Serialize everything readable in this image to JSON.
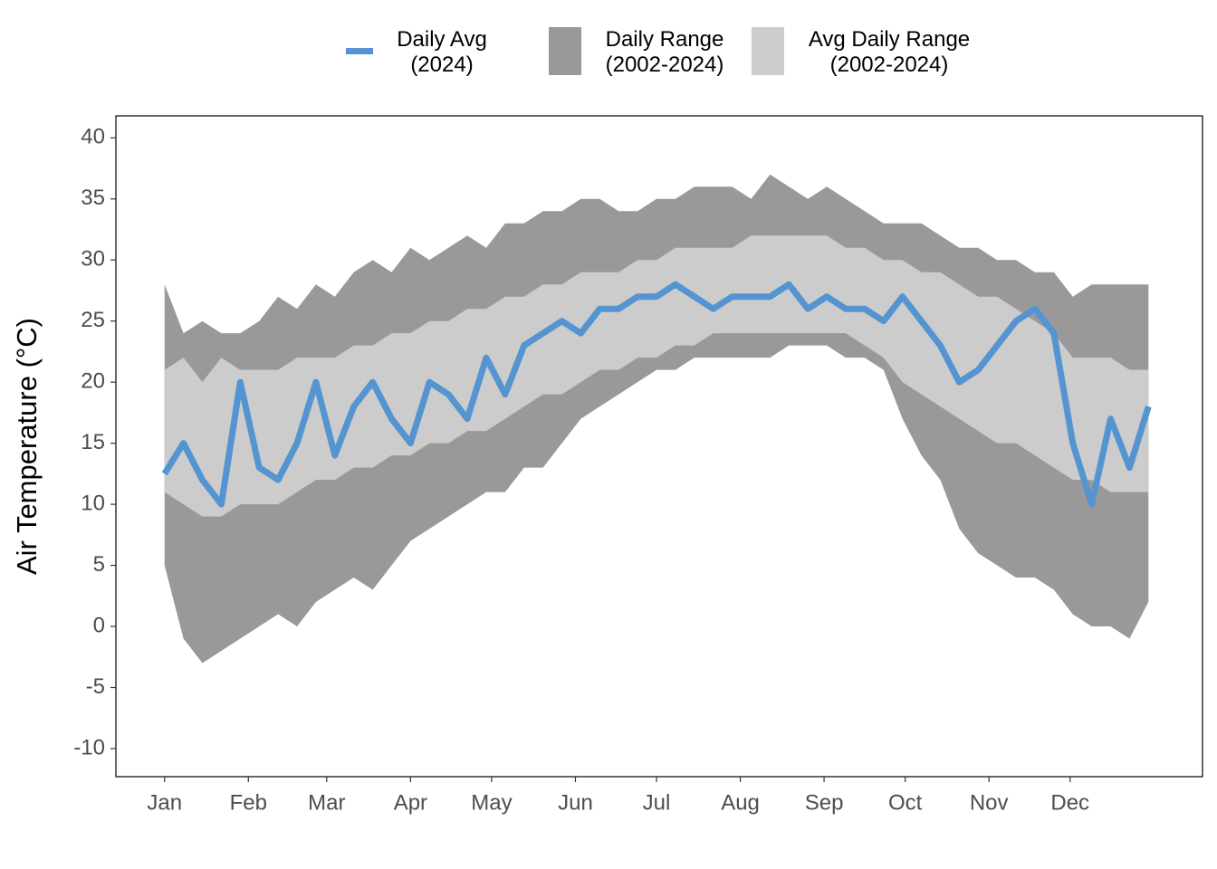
{
  "chart_data": {
    "type": "line",
    "ylabel": "Air Temperature (°C)",
    "xlim": [
      -17,
      385
    ],
    "ylim": [
      -12.3,
      41.8
    ],
    "xticks": [
      {
        "value": 1,
        "label": "Jan"
      },
      {
        "value": 32,
        "label": "Feb"
      },
      {
        "value": 61,
        "label": "Mar"
      },
      {
        "value": 92,
        "label": "Apr"
      },
      {
        "value": 122,
        "label": "May"
      },
      {
        "value": 153,
        "label": "Jun"
      },
      {
        "value": 183,
        "label": "Jul"
      },
      {
        "value": 214,
        "label": "Aug"
      },
      {
        "value": 245,
        "label": "Sep"
      },
      {
        "value": 275,
        "label": "Oct"
      },
      {
        "value": 306,
        "label": "Nov"
      },
      {
        "value": 336,
        "label": "Dec"
      }
    ],
    "yticks": [
      -10,
      -5,
      0,
      5,
      10,
      15,
      20,
      25,
      30,
      35,
      40
    ],
    "grid": false,
    "legend": "top",
    "x": [
      1,
      8,
      15,
      22,
      29,
      36,
      43,
      50,
      57,
      64,
      71,
      78,
      85,
      92,
      99,
      106,
      113,
      120,
      127,
      134,
      141,
      148,
      155,
      162,
      169,
      176,
      183,
      190,
      197,
      204,
      211,
      218,
      225,
      232,
      239,
      246,
      253,
      260,
      267,
      274,
      281,
      288,
      295,
      302,
      309,
      316,
      323,
      330,
      337,
      344,
      351,
      358,
      365
    ],
    "series": [
      {
        "name": "Daily Avg\n(2024)",
        "color": "#5494d0",
        "values": [
          12.5,
          15,
          12,
          10,
          20,
          13,
          12,
          15,
          20,
          14,
          18,
          20,
          17,
          15,
          20,
          19,
          17,
          22,
          19,
          23,
          24,
          25,
          24,
          26,
          26,
          27,
          27,
          28,
          27,
          26,
          27,
          27,
          27,
          28,
          26,
          27,
          26,
          26,
          25,
          27,
          25,
          23,
          20,
          21,
          23,
          25,
          26,
          24,
          15,
          10,
          17,
          13,
          18
        ]
      },
      {
        "name": "Daily Range\n(2002-2024)",
        "color": "#999999",
        "low": [
          5,
          -1,
          -3,
          -2,
          -1,
          0,
          1,
          0,
          2,
          3,
          4,
          3,
          5,
          7,
          8,
          9,
          10,
          11,
          11,
          13,
          13,
          15,
          17,
          18,
          19,
          20,
          21,
          21,
          22,
          22,
          22,
          22,
          22,
          23,
          23,
          23,
          22,
          22,
          21,
          17,
          14,
          12,
          8,
          6,
          5,
          4,
          4,
          3,
          1,
          0,
          0,
          -1,
          2
        ],
        "high": [
          28,
          24,
          25,
          24,
          24,
          25,
          27,
          26,
          28,
          27,
          29,
          30,
          29,
          31,
          30,
          31,
          32,
          31,
          33,
          33,
          34,
          34,
          35,
          35,
          34,
          34,
          35,
          35,
          36,
          36,
          36,
          35,
          37,
          36,
          35,
          36,
          35,
          34,
          33,
          33,
          33,
          32,
          31,
          31,
          30,
          30,
          29,
          29,
          27,
          28,
          28,
          28,
          28
        ]
      },
      {
        "name": "Avg Daily Range\n(2002-2024)",
        "color": "#cccccc",
        "low": [
          11,
          10,
          9,
          9,
          10,
          10,
          10,
          11,
          12,
          12,
          13,
          13,
          14,
          14,
          15,
          15,
          16,
          16,
          17,
          18,
          19,
          19,
          20,
          21,
          21,
          22,
          22,
          23,
          23,
          24,
          24,
          24,
          24,
          24,
          24,
          24,
          24,
          23,
          22,
          20,
          19,
          18,
          17,
          16,
          15,
          15,
          14,
          13,
          12,
          12,
          11,
          11,
          11
        ],
        "high": [
          21,
          22,
          20,
          22,
          21,
          21,
          21,
          22,
          22,
          22,
          23,
          23,
          24,
          24,
          25,
          25,
          26,
          26,
          27,
          27,
          28,
          28,
          29,
          29,
          29,
          30,
          30,
          31,
          31,
          31,
          31,
          32,
          32,
          32,
          32,
          32,
          31,
          31,
          30,
          30,
          29,
          29,
          28,
          27,
          27,
          26,
          25,
          24,
          22,
          22,
          22,
          21,
          21
        ]
      }
    ]
  }
}
